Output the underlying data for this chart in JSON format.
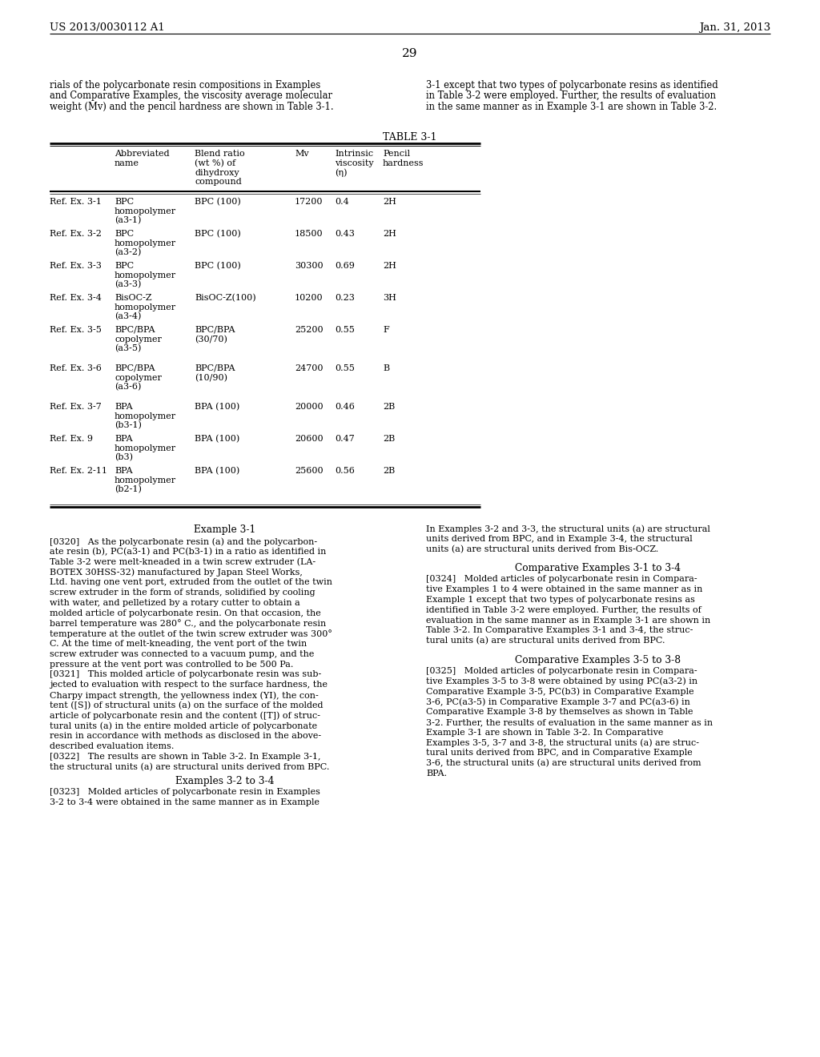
{
  "page_header_left": "US 2013/0030112 A1",
  "page_header_right": "Jan. 31, 2013",
  "page_number": "29",
  "intro_text_left": "rials of the polycarbonate resin compositions in Examples\nand Comparative Examples, the viscosity average molecular\nweight (Mv) and the pencil hardness are shown in Table 3-1.",
  "intro_text_right": "3-1 except that two types of polycarbonate resins as identified\nin Table 3-2 were employed. Further, the results of evaluation\nin the same manner as in Example 3-1 are shown in Table 3-2.",
  "table_title": "TABLE 3-1",
  "table_rows": [
    [
      "Ref. Ex. 3-1",
      "BPC\nhomopolymer\n(a3-1)",
      "BPC (100)",
      "17200",
      "0.4",
      "2H"
    ],
    [
      "Ref. Ex. 3-2",
      "BPC\nhomopolymer\n(a3-2)",
      "BPC (100)",
      "18500",
      "0.43",
      "2H"
    ],
    [
      "Ref. Ex. 3-3",
      "BPC\nhomopolymer\n(a3-3)",
      "BPC (100)",
      "30300",
      "0.69",
      "2H"
    ],
    [
      "Ref. Ex. 3-4",
      "BisOC-Z\nhomopolymer\n(a3-4)",
      "BisOC-Z(100)",
      "10200",
      "0.23",
      "3H"
    ],
    [
      "Ref. Ex. 3-5",
      "BPC/BPA\ncopolymer\n(a3-5)",
      "BPC/BPA\n(30/70)",
      "25200",
      "0.55",
      "F"
    ],
    [
      "Ref. Ex. 3-6",
      "BPC/BPA\ncopolymer\n(a3-6)",
      "BPC/BPA\n(10/90)",
      "24700",
      "0.55",
      "B"
    ],
    [
      "Ref. Ex. 3-7",
      "BPA\nhomopolymer\n(b3-1)",
      "BPA (100)",
      "20000",
      "0.46",
      "2B"
    ],
    [
      "Ref. Ex. 9",
      "BPA\nhomopolymer\n(b3)",
      "BPA (100)",
      "20600",
      "0.47",
      "2B"
    ],
    [
      "Ref. Ex. 2-11",
      "BPA\nhomopolymer\n(b2-1)",
      "BPA (100)",
      "25600",
      "0.56",
      "2B"
    ]
  ],
  "example_31_title": "Example 3-1",
  "para_0320": "[0320]   As the polycarbonate resin (a) and the polycarbon-\nate resin (b), PC(a3-1) and PC(b3-1) in a ratio as identified in\nTable 3-2 were melt-kneaded in a twin screw extruder (LA-\nBOTEX 30HSS-32) manufactured by Japan Steel Works,\nLtd. having one vent port, extruded from the outlet of the twin\nscrew extruder in the form of strands, solidified by cooling\nwith water, and pelletized by a rotary cutter to obtain a\nmolded article of polycarbonate resin. On that occasion, the\nbarrel temperature was 280° C., and the polycarbonate resin\ntemperature at the outlet of the twin screw extruder was 300°\nC. At the time of melt-kneading, the vent port of the twin\nscrew extruder was connected to a vacuum pump, and the\npressure at the vent port was controlled to be 500 Pa.",
  "para_0321": "[0321]   This molded article of polycarbonate resin was sub-\njected to evaluation with respect to the surface hardness, the\nCharpy impact strength, the yellowness index (YI), the con-\ntent ([S]) of structural units (a) on the surface of the molded\narticle of polycarbonate resin and the content ([T]) of struc-\ntural units (a) in the entire molded article of polycarbonate\nresin in accordance with methods as disclosed in the above-\ndescribed evaluation items.",
  "para_0322": "[0322]   The results are shown in Table 3-2. In Example 3-1,\nthe structural units (a) are structural units derived from BPC.",
  "examples_32_34_title": "Examples 3-2 to 3-4",
  "para_0323": "[0323]   Molded articles of polycarbonate resin in Examples\n3-2 to 3-4 were obtained in the same manner as in Example",
  "right_intro": "In Examples 3-2 and 3-3, the structural units (a) are structural\nunits derived from BPC, and in Example 3-4, the structural\nunits (a) are structural units derived from Bis-OCZ.",
  "comp_31_34_title": "Comparative Examples 3-1 to 3-4",
  "para_0324": "[0324]   Molded articles of polycarbonate resin in Compara-\ntive Examples 1 to 4 were obtained in the same manner as in\nExample 1 except that two types of polycarbonate resins as\nidentified in Table 3-2 were employed. Further, the results of\nevaluation in the same manner as in Example 3-1 are shown in\nTable 3-2. In Comparative Examples 3-1 and 3-4, the struc-\ntural units (a) are structural units derived from BPC.",
  "comp_35_38_title": "Comparative Examples 3-5 to 3-8",
  "para_0325": "[0325]   Molded articles of polycarbonate resin in Compara-\ntive Examples 3-5 to 3-8 were obtained by using PC(a3-2) in\nComparative Example 3-5, PC(b3) in Comparative Example\n3-6, PC(a3-5) in Comparative Example 3-7 and PC(a3-6) in\nComparative Example 3-8 by themselves as shown in Table\n3-2. Further, the results of evaluation in the same manner as in\nExample 3-1 are shown in Table 3-2. In Comparative\nExamples 3-5, 3-7 and 3-8, the structural units (a) are struc-\ntural units derived from BPC, and in Comparative Example\n3-6, the structural units (a) are structural units derived from\nBPA.",
  "bg_color": "#ffffff"
}
